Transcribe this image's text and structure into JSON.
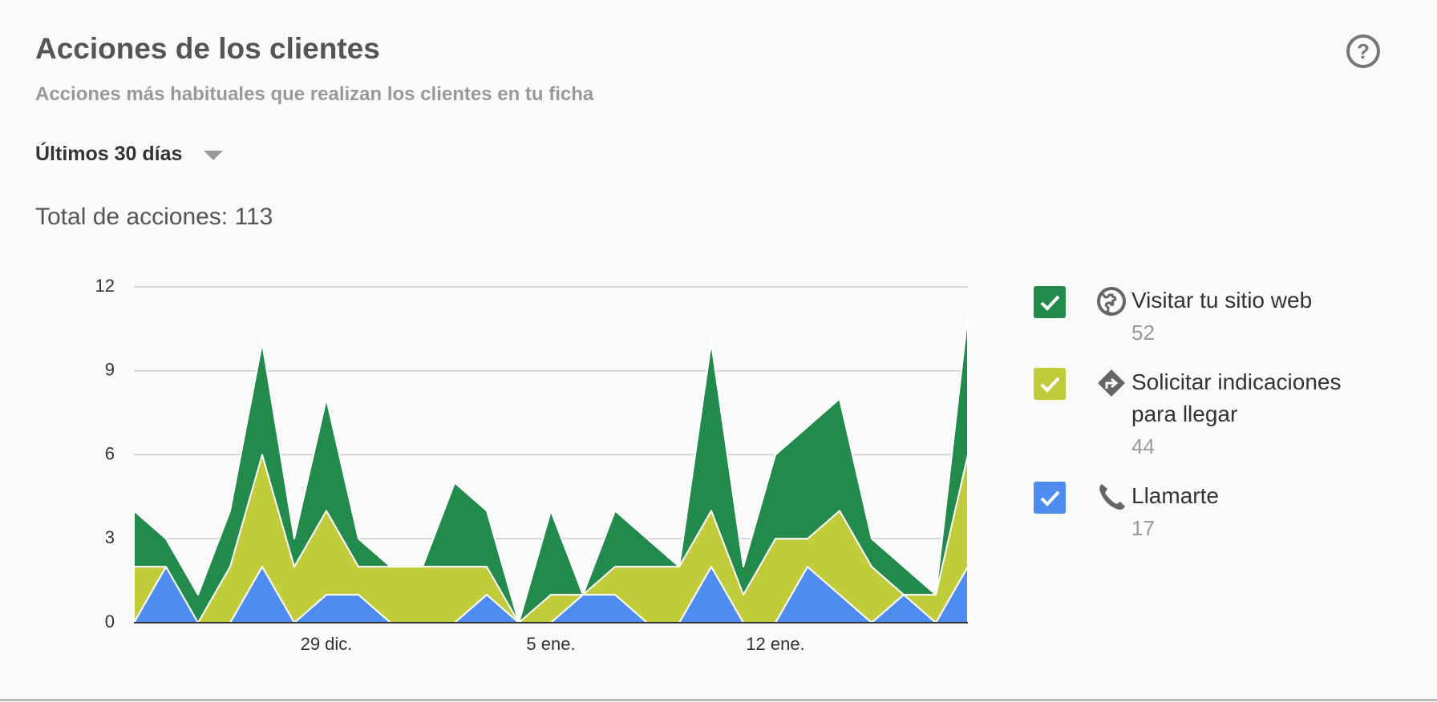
{
  "header": {
    "title": "Acciones de los clientes",
    "subtitle": "Acciones más habituales que realizan los clientes en tu ficha",
    "period": "Últimos 30 días",
    "total_label": "Total de acciones: 113"
  },
  "chart_data": {
    "type": "stacked_area",
    "categories": [
      null,
      null,
      null,
      null,
      null,
      null,
      "29 dic.",
      null,
      null,
      null,
      null,
      null,
      null,
      "5 ene.",
      null,
      null,
      null,
      null,
      null,
      null,
      "12 ene.",
      null,
      null,
      null,
      null,
      null,
      null
    ],
    "series": [
      {
        "name": "Llamarte",
        "color": "#4f8cf0",
        "total": 17,
        "values": [
          0,
          2,
          0,
          0,
          2,
          0,
          1,
          1,
          0,
          0,
          0,
          1,
          0,
          0,
          1,
          1,
          0,
          0,
          2,
          0,
          0,
          2,
          1,
          0,
          1,
          0,
          2
        ]
      },
      {
        "name": "Solicitar indicaciones para llegar",
        "color": "#c1cc3b",
        "total": 44,
        "values": [
          2,
          0,
          0,
          2,
          4,
          2,
          3,
          1,
          2,
          2,
          2,
          1,
          0,
          1,
          0,
          1,
          2,
          2,
          2,
          1,
          3,
          1,
          3,
          2,
          0,
          1,
          4
        ]
      },
      {
        "name": "Visitar tu sitio web",
        "color": "#228a4b",
        "total": 52,
        "values": [
          2,
          1,
          1,
          2,
          4,
          1,
          4,
          1,
          0,
          0,
          3,
          2,
          0,
          3,
          0,
          2,
          1,
          0,
          6,
          1,
          3,
          4,
          4,
          1,
          1,
          0,
          5
        ]
      }
    ],
    "ylim": [
      0,
      12
    ],
    "yticks": [
      0,
      3,
      6,
      9,
      12
    ],
    "grid": true
  }
}
